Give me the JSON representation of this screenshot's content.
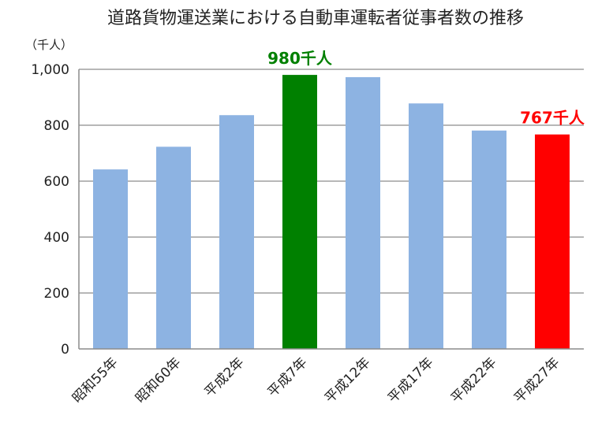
{
  "chart_data": {
    "type": "bar",
    "title": "道路貨物運送業における自動車運転者従事者数の推移",
    "unit_label": "（千人）",
    "categories": [
      "昭和55年",
      "昭和60年",
      "平成2年",
      "平成7年",
      "平成12年",
      "平成17年",
      "平成22年",
      "平成27年"
    ],
    "values": [
      642,
      723,
      836,
      980,
      972,
      878,
      781,
      767
    ],
    "bar_colors": [
      "#8DB3E2",
      "#8DB3E2",
      "#8DB3E2",
      "#008000",
      "#8DB3E2",
      "#8DB3E2",
      "#8DB3E2",
      "#FF0000"
    ],
    "ylim": [
      0,
      1000
    ],
    "yticks": [
      0,
      200,
      400,
      600,
      800,
      1000
    ],
    "ytick_labels": [
      "0",
      "200",
      "400",
      "600",
      "800",
      "1,000"
    ],
    "grid": true,
    "annotations": [
      {
        "category_index": 3,
        "text": "980千人",
        "color": "#008000"
      },
      {
        "category_index": 7,
        "text": "767千人",
        "color": "#FF0000"
      }
    ]
  }
}
